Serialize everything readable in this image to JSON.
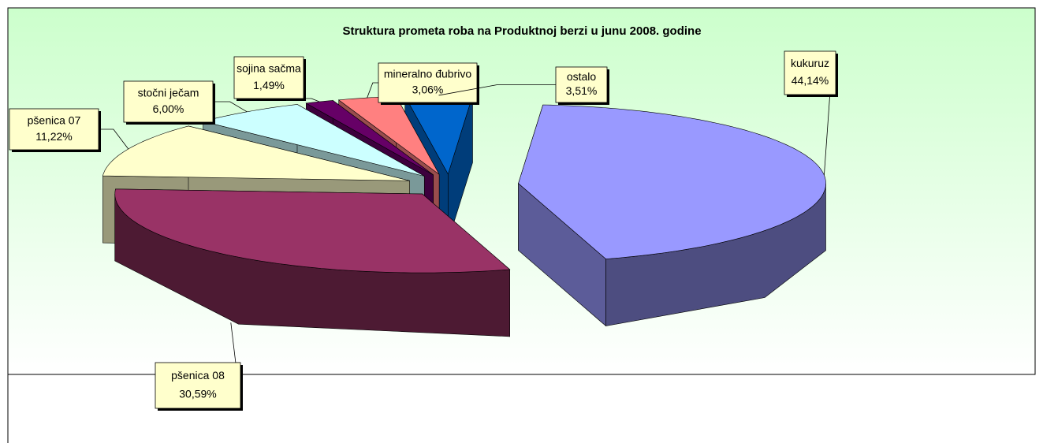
{
  "chart_data": {
    "type": "pie",
    "title": "Struktura prometa roba na Produktnoj berzi u junu 2008. godine",
    "categories": [
      "kukuruz",
      "pšenica 08",
      "pšenica 07",
      "stočni ječam",
      "sojina sačma",
      "mineralno đubrivo",
      "ostalo"
    ],
    "values": [
      44.14,
      30.59,
      11.22,
      6.0,
      1.49,
      3.06,
      3.51
    ],
    "value_labels": [
      "44,14%",
      "30,59%",
      "11,22%",
      "6,00%",
      "1,49%",
      "3,06%",
      "3,51%"
    ],
    "colors": [
      "#9999ff",
      "#993366",
      "#ffffcc",
      "#ccffff",
      "#660066",
      "#ff8080",
      "#0066cc"
    ]
  }
}
